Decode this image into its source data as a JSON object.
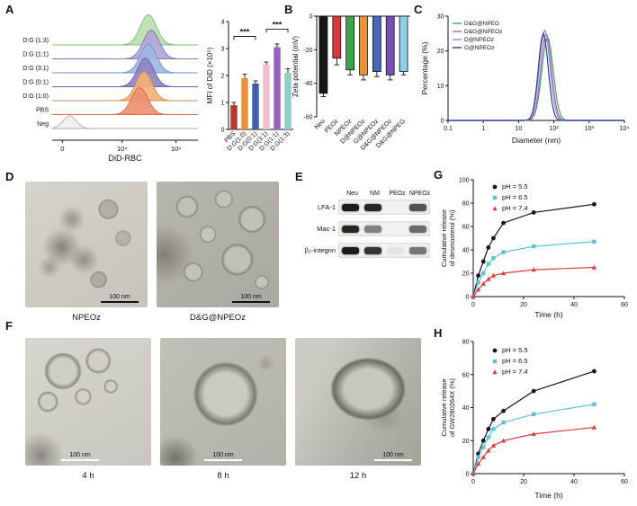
{
  "panel_labels": {
    "A": "A",
    "B": "B",
    "C": "C",
    "D": "D",
    "E": "E",
    "F": "F",
    "G": "G",
    "H": "H"
  },
  "chart_data": {
    "flow_histograms": {
      "type": "ridge-histogram",
      "xlabel": "DiD-RBC",
      "xticks": [
        {
          "pos": 0.07,
          "label": "0"
        },
        {
          "pos": 0.48,
          "label": "10⁴"
        },
        {
          "pos": 0.85,
          "label": "10⁶"
        }
      ],
      "rows": [
        {
          "label": "D:G (1:3)",
          "fill": "#b9dfae",
          "stroke": "#7cbf72",
          "center": 0.66,
          "sigma": 0.055,
          "height": 1.0
        },
        {
          "label": "D:G (1:1)",
          "fill": "#b3a6d8",
          "stroke": "#8674bd",
          "center": 0.68,
          "sigma": 0.055,
          "height": 0.95
        },
        {
          "label": "D:G (3:1)",
          "fill": "#9db8e0",
          "stroke": "#6f93cd",
          "center": 0.66,
          "sigma": 0.055,
          "height": 0.95
        },
        {
          "label": "D:G (0:1)",
          "fill": "#8f85c4",
          "stroke": "#6a5fa8",
          "center": 0.64,
          "sigma": 0.055,
          "height": 0.95
        },
        {
          "label": "D:G (1:0)",
          "fill": "#f2b079",
          "stroke": "#e08a3c",
          "center": 0.63,
          "sigma": 0.055,
          "height": 0.95
        },
        {
          "label": "PBS",
          "fill": "#ee9071",
          "stroke": "#dd6644",
          "center": 0.6,
          "sigma": 0.055,
          "height": 0.9
        },
        {
          "label": "Neg",
          "fill": "#f0efed",
          "stroke": "#b0aea9",
          "center": 0.12,
          "sigma": 0.045,
          "height": 0.42
        }
      ]
    },
    "mfi_bar": {
      "type": "bar",
      "ylabel": "MFI of DiD (×10⁵)",
      "categories": [
        "PBS",
        "D:G(1:0)",
        "D:G(0:1)",
        "D:G(3:1)",
        "D:G(1:1)",
        "D:G(1:3)"
      ],
      "values": [
        0.9,
        1.9,
        1.7,
        2.4,
        3.05,
        2.1
      ],
      "errors": [
        0.1,
        0.15,
        0.1,
        0.1,
        0.12,
        0.15
      ],
      "colors": [
        "#b13b2e",
        "#e8923a",
        "#3f5fae",
        "#f3bfcd",
        "#9a5fc0",
        "#8fd0c6"
      ],
      "ylim": [
        0,
        4
      ],
      "yticks": [
        0,
        1,
        2,
        3,
        4
      ],
      "significance": [
        {
          "from": 0,
          "to": 2,
          "y": 3.45,
          "label": "***"
        },
        {
          "from": 3,
          "to": 5,
          "y": 3.72,
          "label": "***"
        }
      ]
    },
    "zeta_bar": {
      "type": "bar",
      "ylabel": "Zeta potential (mV)",
      "categories": [
        "Neu",
        "PEOz",
        "NPEOz",
        "D@NPEOz",
        "G@NPEOz",
        "D&G@NPEOz",
        "D&G@NPEG"
      ],
      "values": [
        -46,
        -25,
        -32,
        -35,
        -33,
        -35,
        -33
      ],
      "errors": [
        2,
        4,
        3,
        3,
        3,
        3,
        2
      ],
      "colors": [
        "#161616",
        "#d93a3a",
        "#3aa648",
        "#e8923a",
        "#4a66b8",
        "#7a4fb5",
        "#8fd2e8"
      ],
      "ylim": [
        -60,
        0
      ],
      "yticks": [
        0,
        -20,
        -40,
        -60
      ]
    },
    "size_distribution": {
      "type": "line",
      "xlabel": "Diameter (nm)",
      "ylabel": "Percentage (%)",
      "xscale": "log",
      "xlim_log": [
        -1,
        4
      ],
      "xticks": [
        {
          "v": -1,
          "label": "0.1"
        },
        {
          "v": 0,
          "label": "1"
        },
        {
          "v": 1,
          "label": "10"
        },
        {
          "v": 2,
          "label": "10²"
        },
        {
          "v": 3,
          "label": "10³"
        },
        {
          "v": 4,
          "label": "10⁴"
        }
      ],
      "ylim": [
        0,
        30
      ],
      "yticks": [
        0,
        10,
        20,
        30
      ],
      "series": [
        {
          "name": "D&G@NPEG",
          "color": "#3fae5a",
          "log_center": 1.82,
          "log_sigma": 0.16,
          "peak_pct": 24
        },
        {
          "name": "D&G@NPEOz",
          "color": "#c05ab0",
          "log_center": 1.78,
          "log_sigma": 0.15,
          "peak_pct": 25
        },
        {
          "name": "D@NPEOz",
          "color": "#7a9ad0",
          "log_center": 1.74,
          "log_sigma": 0.15,
          "peak_pct": 26
        },
        {
          "name": "G@NPEOz",
          "color": "#2b3f9e",
          "log_center": 1.7,
          "log_sigma": 0.14,
          "peak_pct": 25
        }
      ]
    },
    "release_desmosterol": {
      "type": "line",
      "xlabel": "Time (h)",
      "ylabel_lines": [
        "Cumulative release",
        "of desmosterol (%)"
      ],
      "xlim": [
        0,
        60
      ],
      "xticks": [
        0,
        20,
        40,
        60
      ],
      "ylim": [
        0,
        100
      ],
      "yticks": [
        0,
        20,
        40,
        60,
        80,
        100
      ],
      "series": [
        {
          "name": "pH = 5.5",
          "color": "#161616",
          "marker": "circle",
          "x": [
            0,
            2,
            4,
            6,
            8,
            12,
            24,
            48
          ],
          "y": [
            0,
            18,
            30,
            42,
            50,
            63,
            72,
            79
          ]
        },
        {
          "name": "pH = 6.5",
          "color": "#5fc3d6",
          "marker": "square",
          "x": [
            0,
            2,
            4,
            6,
            8,
            12,
            24,
            48
          ],
          "y": [
            0,
            12,
            20,
            28,
            33,
            38,
            43,
            47
          ]
        },
        {
          "name": "pH = 7.4",
          "color": "#e23b3b",
          "marker": "triangle",
          "x": [
            0,
            2,
            4,
            6,
            8,
            12,
            24,
            48
          ],
          "y": [
            0,
            6,
            11,
            15,
            18,
            20,
            23,
            25
          ]
        }
      ]
    },
    "release_gw280264x": {
      "type": "line",
      "xlabel": "Time (h)",
      "ylabel_lines": [
        "Cumulative release",
        "of GW280264X (%)"
      ],
      "xlim": [
        0,
        60
      ],
      "xticks": [
        0,
        20,
        40,
        60
      ],
      "ylim": [
        0,
        80
      ],
      "yticks": [
        0,
        20,
        40,
        60,
        80
      ],
      "series": [
        {
          "name": "pH = 5.5",
          "color": "#161616",
          "marker": "circle",
          "x": [
            0,
            2,
            4,
            6,
            8,
            12,
            24,
            48
          ],
          "y": [
            0,
            12,
            20,
            27,
            33,
            38,
            50,
            62
          ]
        },
        {
          "name": "pH = 6.5",
          "color": "#5fc3d6",
          "marker": "square",
          "x": [
            0,
            2,
            4,
            6,
            8,
            12,
            24,
            48
          ],
          "y": [
            0,
            10,
            16,
            22,
            27,
            31,
            36,
            42
          ]
        },
        {
          "name": "pH = 7.4",
          "color": "#e23b3b",
          "marker": "triangle",
          "x": [
            0,
            2,
            4,
            6,
            8,
            12,
            24,
            48
          ],
          "y": [
            0,
            6,
            10,
            14,
            17,
            20,
            24,
            28
          ]
        }
      ]
    }
  },
  "electron_microscopy": {
    "scale_label": "100 nm",
    "panel_d_labels": [
      "NPEOz",
      "D&G@NPEOz"
    ],
    "panel_f_labels": [
      "4 h",
      "8 h",
      "12 h"
    ]
  },
  "western_blot": {
    "columns": [
      "Neu",
      "NM",
      "PEOz",
      "NPEOz"
    ],
    "rows": [
      {
        "label": "LFA-1",
        "band_intensities": [
          0.95,
          0.9,
          0,
          0.7
        ]
      },
      {
        "label": "Mac-1",
        "band_intensities": [
          0.9,
          0.5,
          0,
          0.6
        ]
      },
      {
        "label": "β₂-integrin",
        "band_intensities": [
          0.95,
          0.85,
          0.05,
          0.55
        ]
      }
    ]
  }
}
